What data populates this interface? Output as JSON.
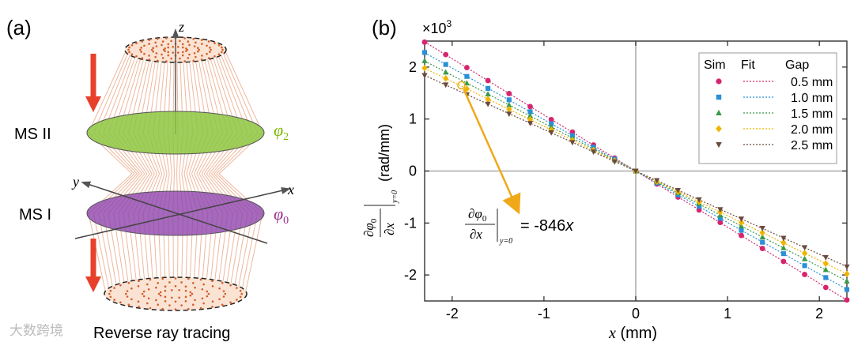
{
  "panel_a": {
    "label": "(a)",
    "axis_z": "z",
    "axis_x": "x",
    "axis_y": "y",
    "ms2_label": "MS II",
    "ms1_label": "MS I",
    "phi2": "φ",
    "phi2_sub": "2",
    "phi0": "φ",
    "phi0_sub": "0",
    "caption": "Reverse ray tracing",
    "colors": {
      "ms2": "#8dc63f",
      "ms1": "#8e44ad",
      "rays": "#e8a07c",
      "arrow": "#e8402a",
      "phi2_text": "#7ab800",
      "phi0_text": "#9b2d8f"
    }
  },
  "panel_b": {
    "label": "(b)",
    "multiplier": "×10",
    "multiplier_exp": "3",
    "ylabel": "(rad/mm)",
    "ylabel_deriv_num": "∂φ",
    "ylabel_deriv_num_sub": "0",
    "ylabel_deriv_den": "∂x",
    "ylabel_eval": "y=0",
    "xlabel_var": "x",
    "xlabel_unit": " (mm)",
    "annotation": {
      "num": "∂φ",
      "num_sub": "0",
      "den": "∂x",
      "eval": "y=0",
      "rhs": "= -846",
      "rhs_var": "x",
      "color": "#f0a818"
    },
    "legend": {
      "h_sim": "Sim",
      "h_fit": "Fit",
      "h_gap": "Gap"
    }
  },
  "chart_data": {
    "type": "scatter",
    "title": "",
    "xlabel": "x (mm)",
    "ylabel": "∂φ0/∂x |y=0 (rad/mm) ×10^3",
    "xlim": [
      -2.3,
      2.3
    ],
    "ylim": [
      -2.5,
      2.5
    ],
    "xticks": [
      -2,
      -1,
      0,
      1,
      2
    ],
    "yticks": [
      -2,
      -1,
      0,
      1,
      2
    ],
    "xtick_labels": [
      "-2",
      "-1",
      "0",
      "1",
      "2"
    ],
    "ytick_labels": [
      "-2",
      "-1",
      "0",
      "1",
      "2"
    ],
    "x": [
      -2.3,
      -2.07,
      -1.84,
      -1.61,
      -1.38,
      -1.15,
      -0.92,
      -0.69,
      -0.46,
      -0.23,
      0.0,
      0.23,
      0.46,
      0.69,
      0.92,
      1.15,
      1.38,
      1.61,
      1.84,
      2.07,
      2.3
    ],
    "series": [
      {
        "name": "0.5 mm",
        "slope": -1.08,
        "marker": "circle",
        "color": "#d6246e",
        "values": [
          2.48,
          2.24,
          1.99,
          1.74,
          1.49,
          1.24,
          0.99,
          0.75,
          0.5,
          0.25,
          0.0,
          -0.25,
          -0.5,
          -0.75,
          -0.99,
          -1.24,
          -1.49,
          -1.74,
          -1.99,
          -2.24,
          -2.48
        ]
      },
      {
        "name": "1.0 mm",
        "slope": -0.99,
        "marker": "square",
        "color": "#2a8fd6",
        "values": [
          2.28,
          2.05,
          1.82,
          1.59,
          1.37,
          1.14,
          0.91,
          0.68,
          0.46,
          0.23,
          0.0,
          -0.23,
          -0.46,
          -0.68,
          -0.91,
          -1.14,
          -1.37,
          -1.59,
          -1.82,
          -2.05,
          -2.28
        ]
      },
      {
        "name": "1.5 mm",
        "slope": -0.92,
        "marker": "triangle",
        "color": "#3a9a4a",
        "values": [
          2.12,
          1.9,
          1.69,
          1.48,
          1.27,
          1.06,
          0.85,
          0.63,
          0.42,
          0.21,
          0.0,
          -0.21,
          -0.42,
          -0.63,
          -0.85,
          -1.06,
          -1.27,
          -1.48,
          -1.69,
          -1.9,
          -2.12
        ]
      },
      {
        "name": "2.0 mm",
        "slope": -0.86,
        "marker": "diamond",
        "color": "#f0b400",
        "values": [
          1.98,
          1.78,
          1.58,
          1.38,
          1.19,
          0.99,
          0.79,
          0.59,
          0.4,
          0.2,
          0.0,
          -0.2,
          -0.4,
          -0.59,
          -0.79,
          -0.99,
          -1.19,
          -1.38,
          -1.58,
          -1.78,
          -1.98
        ]
      },
      {
        "name": "2.5 mm",
        "slope": -0.8,
        "marker": "triangle-down",
        "color": "#6b4a3e",
        "values": [
          1.84,
          1.66,
          1.47,
          1.29,
          1.1,
          0.92,
          0.74,
          0.55,
          0.37,
          0.18,
          0.0,
          -0.18,
          -0.37,
          -0.55,
          -0.74,
          -0.92,
          -1.1,
          -1.29,
          -1.47,
          -1.66,
          -1.84
        ]
      }
    ],
    "legend_position": "top-right",
    "annotation_point": {
      "x": -1.9,
      "y": 1.65
    }
  },
  "watermark": "大数跨境"
}
